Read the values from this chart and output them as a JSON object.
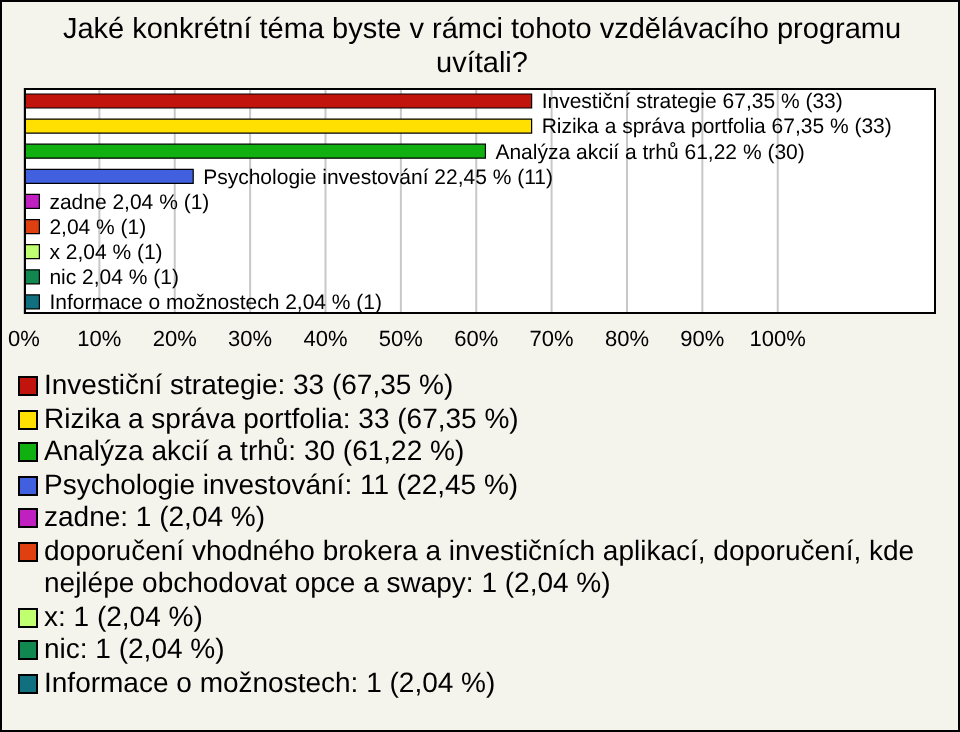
{
  "chart_data": {
    "type": "bar",
    "orientation": "horizontal",
    "stacked": true,
    "title": "Jaké konkrétní téma byste v rámci tohoto vzdělávacího programu uvítali?",
    "categories": [
      null,
      null,
      null,
      null,
      null,
      null,
      null,
      null,
      null
    ],
    "series": [
      {
        "name": "Investiční strategie: 33 (67,35 %)",
        "color": "#c0140c",
        "values": [
          67.35,
          null,
          null,
          null,
          null,
          null,
          null,
          null,
          null
        ],
        "value_labels": [
          "Investiční strategie 67,35 % (33)",
          null,
          null,
          null,
          null,
          null,
          null,
          null,
          null
        ]
      },
      {
        "name": "Rizika a správa portfolia: 33 (67,35 %)",
        "color": "#ffe000",
        "values": [
          null,
          67.35,
          null,
          null,
          null,
          null,
          null,
          null,
          null
        ],
        "value_labels": [
          null,
          "Rizika a správa portfolia 67,35 % (33)",
          null,
          null,
          null,
          null,
          null,
          null,
          null
        ]
      },
      {
        "name": "Analýza akcií a trhů: 30 (61,22 %)",
        "color": "#10b010",
        "values": [
          null,
          null,
          61.22,
          null,
          null,
          null,
          null,
          null,
          null
        ],
        "value_labels": [
          null,
          null,
          "Analýza akcií a trhů 61,22 % (30)",
          null,
          null,
          null,
          null,
          null,
          null
        ]
      },
      {
        "name": "Psychologie investování: 11 (22,45 %)",
        "color": "#4060e0",
        "values": [
          null,
          null,
          null,
          22.45,
          null,
          null,
          null,
          null,
          null
        ],
        "value_labels": [
          null,
          null,
          null,
          "Psychologie investování 22,45 % (11)",
          null,
          null,
          null,
          null,
          null
        ]
      },
      {
        "name": "zadne: 1 (2,04 %)",
        "color": "#c020c0",
        "values": [
          null,
          null,
          null,
          null,
          2.04,
          null,
          null,
          null,
          null
        ],
        "value_labels": [
          null,
          null,
          null,
          null,
          "zadne 2,04 % (1)",
          null,
          null,
          null,
          null
        ]
      },
      {
        "name": "doporučení vhodného brokera a investičních aplikací, doporučení, kde nejlépe obchodovat opce a swapy: 1 (2,04 %)",
        "color": "#e04010",
        "values": [
          null,
          null,
          null,
          null,
          null,
          2.04,
          null,
          null,
          null
        ],
        "value_labels": [
          null,
          null,
          null,
          null,
          null,
          "2,04 % (1)",
          null,
          null,
          null
        ]
      },
      {
        "name": "x: 1 (2,04 %)",
        "color": "#c0ff70",
        "values": [
          null,
          null,
          null,
          null,
          null,
          null,
          2.04,
          null,
          null
        ],
        "value_labels": [
          null,
          null,
          null,
          null,
          null,
          null,
          "x 2,04 % (1)",
          null,
          null
        ]
      },
      {
        "name": "nic: 1 (2,04 %)",
        "color": "#108850",
        "values": [
          null,
          null,
          null,
          null,
          null,
          null,
          null,
          2.04,
          null
        ],
        "value_labels": [
          null,
          null,
          null,
          null,
          null,
          null,
          null,
          "nic 2,04 % (1)",
          null
        ]
      },
      {
        "name": "Informace o možnostech: 1 (2,04 %)",
        "color": "#107080",
        "values": [
          null,
          null,
          null,
          null,
          null,
          null,
          null,
          null,
          2.04
        ],
        "value_labels": [
          null,
          null,
          null,
          null,
          null,
          null,
          null,
          null,
          "Informace o možnostech 2,04 % (1)"
        ]
      }
    ],
    "xlim": [
      0,
      121
    ],
    "xticks": [
      {
        "value": 0,
        "label": "0%"
      },
      {
        "value": 10,
        "label": "10%"
      },
      {
        "value": 20,
        "label": "20%"
      },
      {
        "value": 30,
        "label": "30%"
      },
      {
        "value": 40,
        "label": "40%"
      },
      {
        "value": 50,
        "label": "50%"
      },
      {
        "value": 60,
        "label": "60%"
      },
      {
        "value": 70,
        "label": "70%"
      },
      {
        "value": 80,
        "label": "80%"
      },
      {
        "value": 90,
        "label": "90%"
      },
      {
        "value": 100,
        "label": "100%"
      }
    ],
    "grid": "x",
    "legend": "bottom"
  }
}
